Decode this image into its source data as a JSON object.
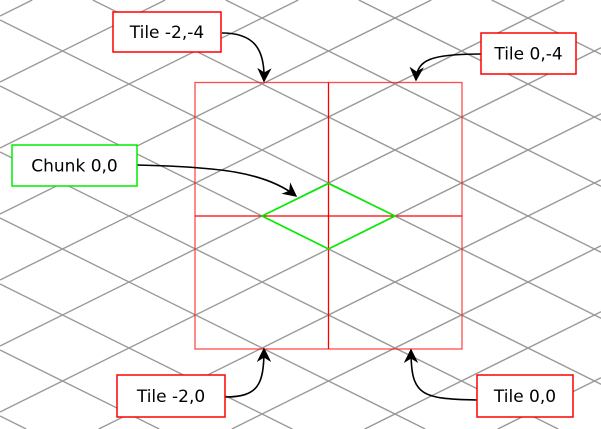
{
  "colors": {
    "grid": "#999999",
    "tile": "#ff0000",
    "chunk": "#00ee00",
    "arrow": "#000000"
  },
  "labels": {
    "tile_m2_m4": "Tile -2,-4",
    "tile_0_m4": "Tile 0,-4",
    "chunk_0_0": "Chunk 0,0",
    "tile_m2_0": "Tile -2,0",
    "tile_0_0": "Tile 0,0"
  }
}
